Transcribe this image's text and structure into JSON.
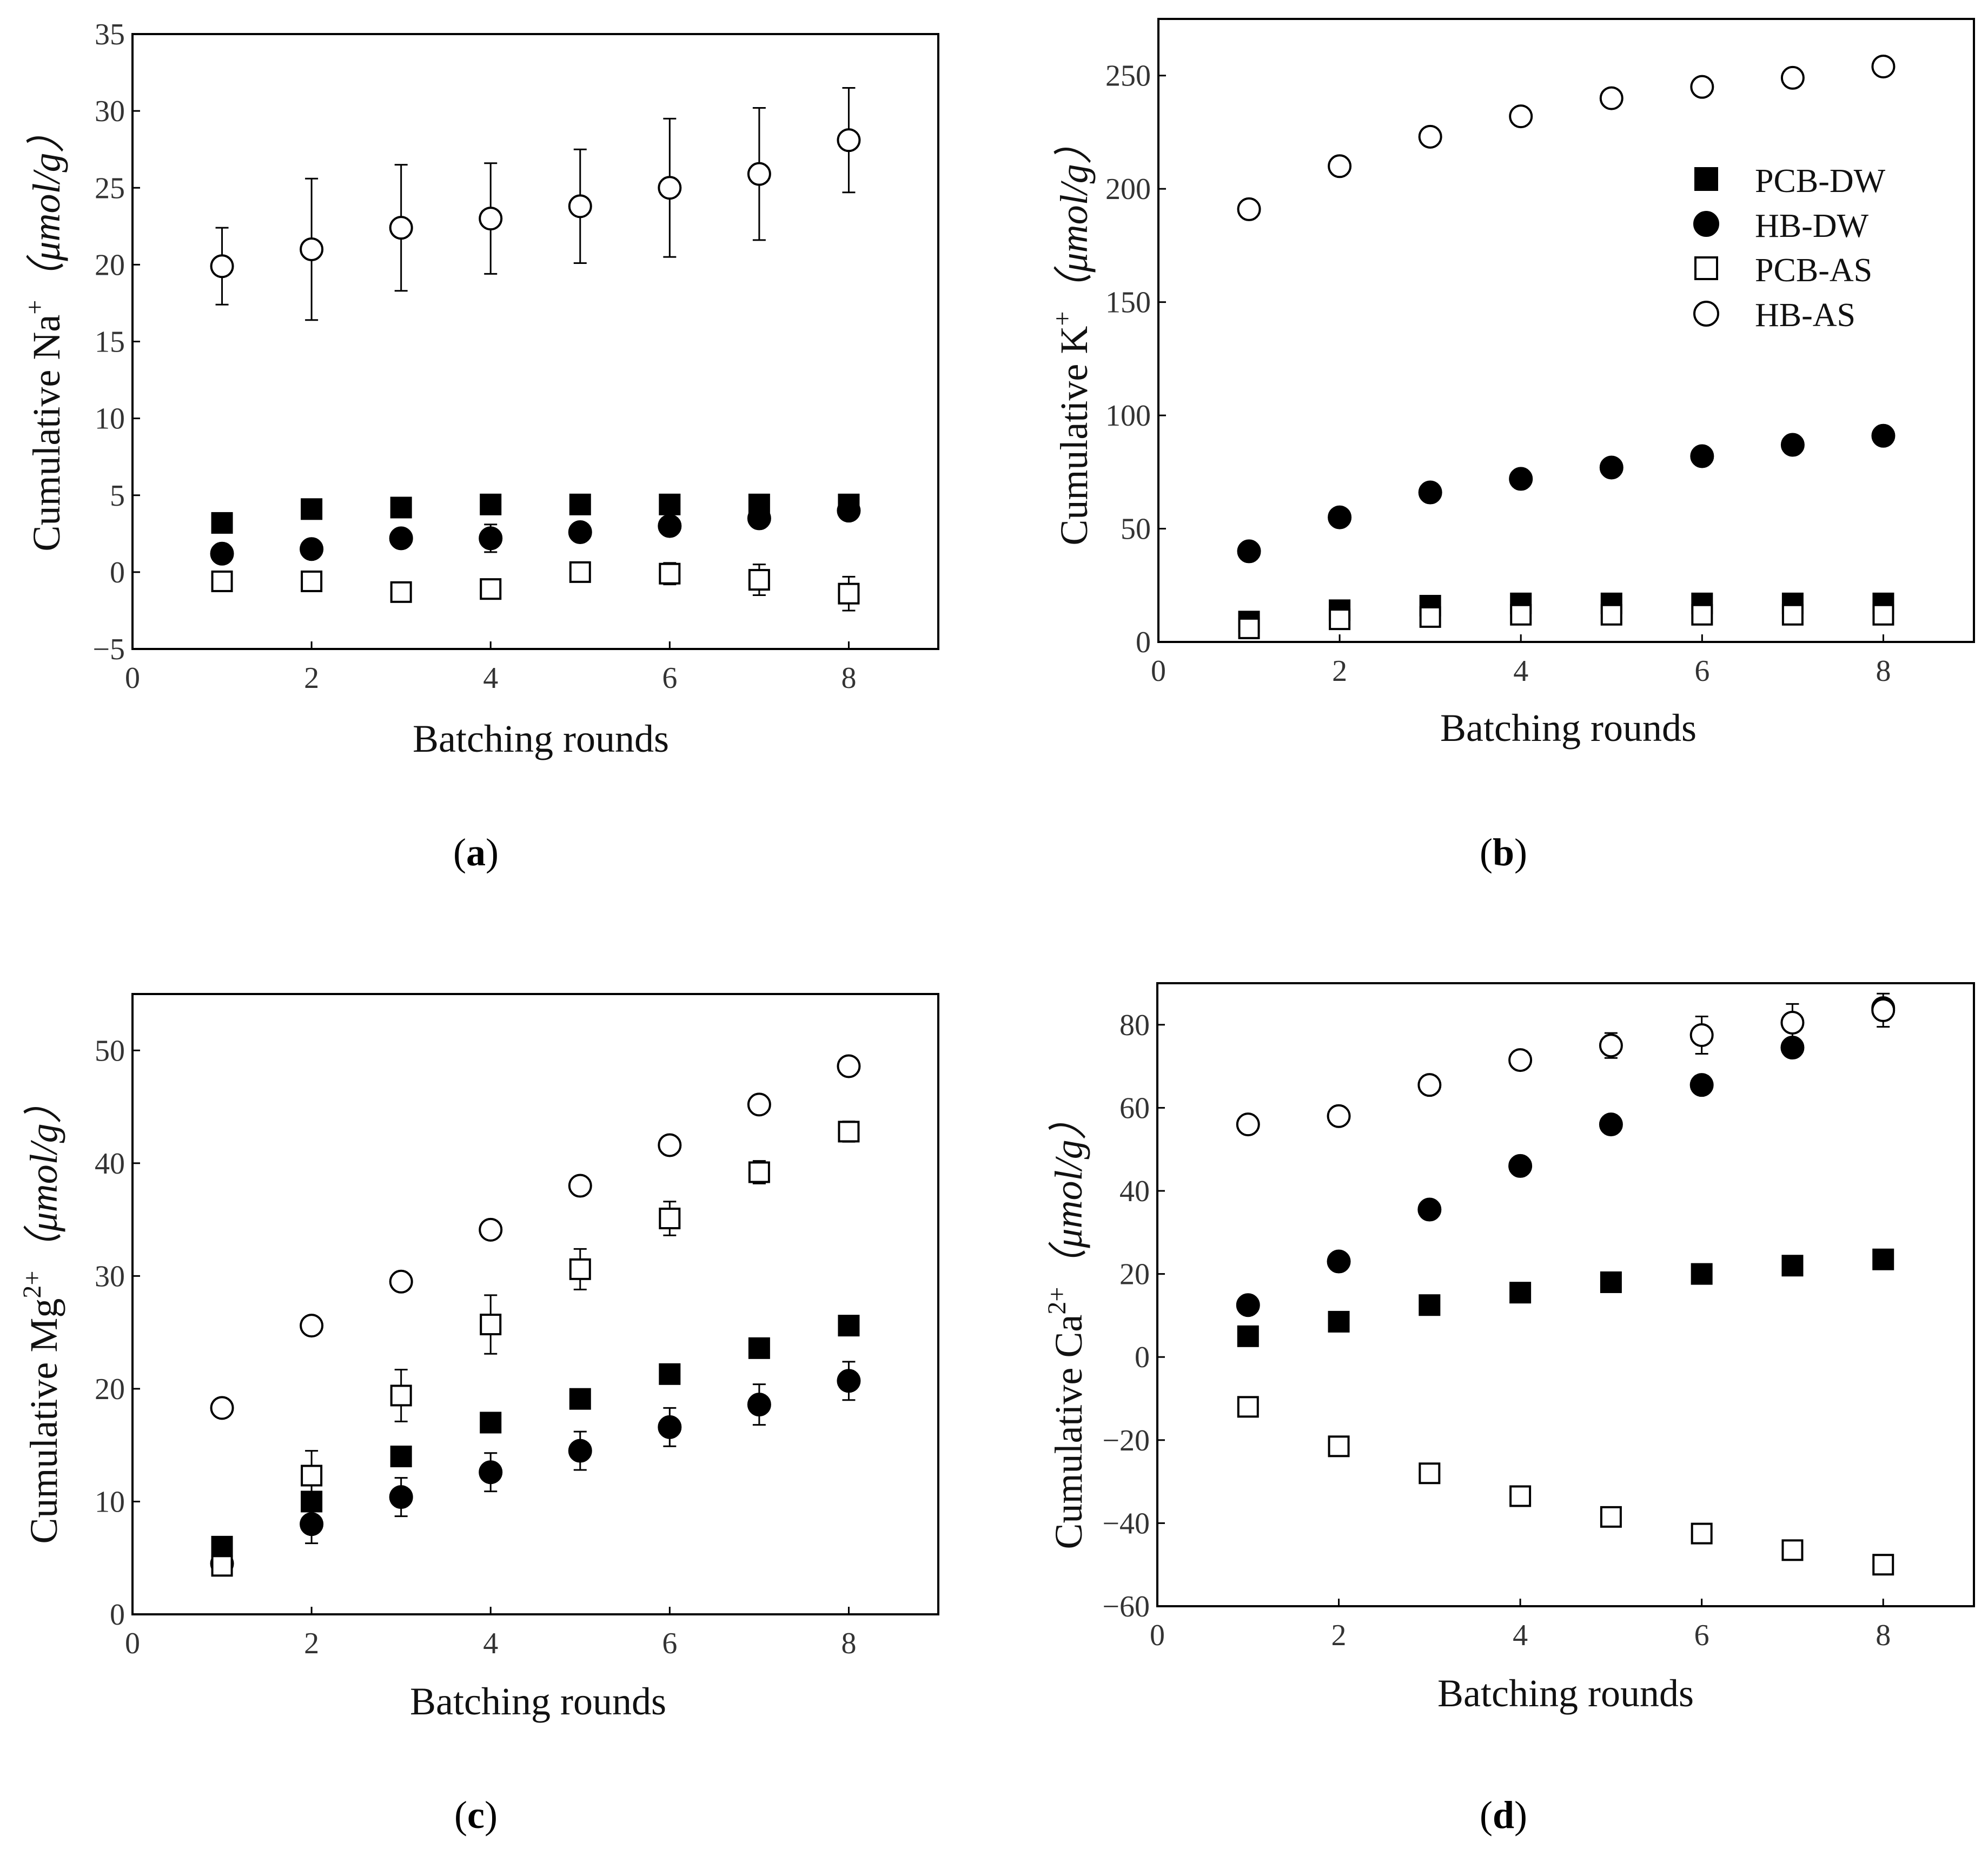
{
  "figure": {
    "series_styles": {
      "PCB-DW": {
        "marker": "square",
        "fill": "#000000"
      },
      "HB-DW": {
        "marker": "circle",
        "fill": "#000000"
      },
      "PCB-AS": {
        "marker": "square",
        "fill": "#ffffff"
      },
      "HB-AS": {
        "marker": "circle",
        "fill": "#ffffff"
      }
    },
    "marker_stroke": "#000000",
    "axis_color": "#000000"
  },
  "chart_data": [
    {
      "id": "a",
      "type": "scatter",
      "panel_label": {
        "open": "(",
        "letter": "a",
        "close": ")"
      },
      "xlabel": "Batching rounds",
      "ylabel": {
        "prefix": "Cumulative Na",
        "sup": "+",
        "unit": "（μmol/g）"
      },
      "xlim": [
        0,
        9
      ],
      "ylim": [
        -5,
        35
      ],
      "xticks": [
        0,
        2,
        4,
        6,
        8
      ],
      "yticks": [
        -5,
        0,
        5,
        10,
        15,
        20,
        25,
        30,
        35
      ],
      "ytick_labels": [
        "−5",
        "0",
        "5",
        "10",
        "15",
        "20",
        "25",
        "30",
        "35"
      ],
      "legend": null,
      "x": [
        1,
        2,
        3,
        4,
        5,
        6,
        7,
        8
      ],
      "series": [
        {
          "name": "PCB-DW",
          "values": [
            3.2,
            4.1,
            4.2,
            4.4,
            4.4,
            4.4,
            4.4,
            4.4
          ],
          "errors": [
            0.2,
            0.2,
            0.2,
            0.2,
            0.2,
            0.2,
            0.2,
            0.2
          ]
        },
        {
          "name": "HB-DW",
          "values": [
            1.2,
            1.5,
            2.2,
            2.2,
            2.6,
            3.0,
            3.5,
            4.0
          ],
          "errors": [
            0.2,
            0.2,
            0.2,
            0.9,
            0.3,
            0.3,
            0.3,
            0.3
          ]
        },
        {
          "name": "PCB-AS",
          "values": [
            -0.6,
            -0.6,
            -1.3,
            -1.1,
            0.0,
            -0.1,
            -0.5,
            -1.4
          ],
          "errors": [
            0.4,
            0.4,
            0.5,
            0.5,
            0.3,
            0.7,
            1.0,
            1.1
          ]
        },
        {
          "name": "HB-AS",
          "values": [
            19.9,
            21.0,
            22.4,
            23.0,
            23.8,
            25.0,
            25.9,
            28.1
          ],
          "errors": [
            2.5,
            4.6,
            4.1,
            3.6,
            3.7,
            4.5,
            4.3,
            3.4
          ]
        }
      ]
    },
    {
      "id": "b",
      "type": "scatter",
      "panel_label": {
        "open": "(",
        "letter": "b",
        "close": ")"
      },
      "xlabel": "Batching rounds",
      "ylabel": {
        "prefix": "Cumulative K",
        "sup": "+",
        "unit": "（μmol/g）"
      },
      "xlim": [
        0,
        9
      ],
      "ylim": [
        0,
        275
      ],
      "xticks": [
        0,
        2,
        4,
        6,
        8
      ],
      "yticks": [
        0,
        50,
        100,
        150,
        200,
        250
      ],
      "ytick_labels": [
        "0",
        "50",
        "100",
        "150",
        "200",
        "250"
      ],
      "legend": {
        "location": "top-right",
        "entries": [
          "PCB-DW",
          "HB-DW",
          "PCB-AS",
          "HB-AS"
        ]
      },
      "x": [
        1,
        2,
        3,
        4,
        5,
        6,
        7,
        8
      ],
      "series": [
        {
          "name": "PCB-DW",
          "values": [
            9,
            14,
            16,
            17,
            17,
            17,
            17,
            17
          ],
          "errors": [
            1,
            1,
            1,
            1,
            1,
            1,
            1,
            1
          ]
        },
        {
          "name": "HB-DW",
          "values": [
            40,
            55,
            66,
            72,
            77,
            82,
            87,
            91
          ],
          "errors": [
            1.5,
            1.5,
            1.5,
            1.5,
            1.5,
            1.5,
            1.5,
            1.5
          ]
        },
        {
          "name": "PCB-AS",
          "values": [
            6,
            10,
            11,
            12,
            12,
            12,
            12,
            12
          ],
          "errors": [
            1,
            1,
            1,
            1,
            1,
            1,
            1,
            1
          ]
        },
        {
          "name": "HB-AS",
          "values": [
            191,
            210,
            223,
            232,
            240,
            245,
            249,
            254
          ],
          "errors": [
            3,
            4,
            3,
            4,
            4,
            4,
            4,
            4
          ]
        }
      ]
    },
    {
      "id": "c",
      "type": "scatter",
      "panel_label": {
        "open": "(",
        "letter": "c",
        "close": ")"
      },
      "xlabel": "Batching rounds",
      "ylabel": {
        "prefix": "Cumulative Mg",
        "sup": "2+",
        "unit": "（μmol/g）"
      },
      "xlim": [
        0,
        9
      ],
      "ylim": [
        0,
        55
      ],
      "xticks": [
        0,
        2,
        4,
        6,
        8
      ],
      "yticks": [
        0,
        10,
        20,
        30,
        40,
        50
      ],
      "ytick_labels": [
        "0",
        "10",
        "20",
        "30",
        "40",
        "50"
      ],
      "legend": null,
      "x": [
        1,
        2,
        3,
        4,
        5,
        6,
        7,
        8
      ],
      "series": [
        {
          "name": "PCB-DW",
          "values": [
            6.0,
            10.0,
            14.0,
            17.0,
            19.1,
            21.3,
            23.6,
            25.6
          ],
          "errors": [
            0.3,
            0.3,
            0.3,
            0.4,
            0.4,
            0.4,
            0.4,
            0.4
          ]
        },
        {
          "name": "HB-DW",
          "values": [
            4.5,
            8.0,
            10.4,
            12.6,
            14.5,
            16.6,
            18.6,
            20.7
          ],
          "errors": [
            0.4,
            1.7,
            1.7,
            1.7,
            1.7,
            1.7,
            1.8,
            1.7
          ]
        },
        {
          "name": "PCB-AS",
          "values": [
            4.3,
            12.3,
            19.4,
            25.7,
            30.6,
            35.1,
            39.2,
            42.8
          ],
          "errors": [
            0.4,
            2.2,
            2.3,
            2.6,
            1.8,
            1.5,
            1.0,
            0.9
          ]
        },
        {
          "name": "HB-AS",
          "values": [
            18.3,
            25.6,
            29.5,
            34.1,
            38.0,
            41.6,
            45.2,
            48.6
          ],
          "errors": [
            0.3,
            0.3,
            0.3,
            0.4,
            0.4,
            0.4,
            0.4,
            0.4
          ]
        }
      ]
    },
    {
      "id": "d",
      "type": "scatter",
      "panel_label": {
        "open": "(",
        "letter": "d",
        "close": ")"
      },
      "xlabel": "Batching rounds",
      "ylabel": {
        "prefix": "Cumulative Ca",
        "sup": "2+",
        "unit": "（μmol/g）"
      },
      "xlim": [
        0,
        9
      ],
      "ylim": [
        -60,
        90
      ],
      "xticks": [
        0,
        2,
        4,
        6,
        8
      ],
      "yticks": [
        -60,
        -40,
        -20,
        0,
        20,
        40,
        60,
        80
      ],
      "ytick_labels": [
        "−60",
        "−40",
        "−20",
        "0",
        "20",
        "40",
        "60",
        "80"
      ],
      "legend": null,
      "x": [
        1,
        2,
        3,
        4,
        5,
        6,
        7,
        8
      ],
      "series": [
        {
          "name": "PCB-DW",
          "values": [
            5,
            8.5,
            12.5,
            15.5,
            18,
            20,
            22,
            23.5
          ],
          "errors": [
            0.6,
            0.6,
            0.6,
            0.6,
            0.6,
            0.6,
            0.6,
            0.6
          ]
        },
        {
          "name": "HB-DW",
          "values": [
            12.5,
            23,
            35.5,
            46,
            56,
            65.5,
            74.5,
            84
          ],
          "errors": [
            0.8,
            0.8,
            0.8,
            0.8,
            0.8,
            0.8,
            0.8,
            0.8
          ]
        },
        {
          "name": "PCB-AS",
          "values": [
            -12,
            -21.5,
            -28,
            -33.5,
            -38.5,
            -42.5,
            -46.5,
            -50
          ],
          "errors": [
            1,
            1,
            1,
            1,
            1,
            1,
            1,
            1
          ]
        },
        {
          "name": "HB-AS",
          "values": [
            56,
            58,
            65.5,
            71.5,
            75,
            77.5,
            80.5,
            83.5
          ],
          "errors": [
            1.2,
            1.2,
            1.5,
            1.5,
            3.0,
            4.5,
            4.5,
            4.0
          ]
        }
      ]
    }
  ]
}
